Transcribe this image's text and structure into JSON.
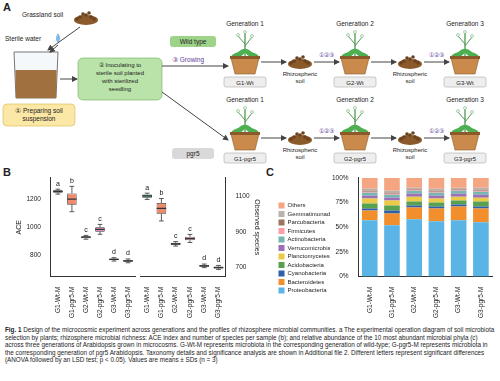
{
  "panel_a": {
    "letter": "A",
    "soil_source": "Grassland soil",
    "water": "Sterile water",
    "step1": "① Preparing soil suspension",
    "step2": "② Inoculating to sterile soil planted with sterilized seedling",
    "step3": "③ Growing",
    "rows": [
      {
        "name": "Wild type",
        "samples": [
          "G1-Wt",
          "G2-Wt",
          "G3-Wt"
        ]
      },
      {
        "name": "pgr5",
        "samples": [
          "G1-pgr5",
          "G2-pgr5",
          "G3-pgr5"
        ]
      }
    ],
    "generations": [
      "Generation 1",
      "Generation 2",
      "Generation 3"
    ],
    "rhizosphere": "Rhizospheric soil",
    "transfer": "①②③"
  },
  "chart_data": [
    {
      "type": "box",
      "panel": "B",
      "categories": [
        "G1-Wt-M",
        "G1-pgr5-M",
        "G2-Wt-M",
        "G2-pgr5-M",
        "G3-Wt-M",
        "G3-pgr5-M"
      ],
      "y_label": "ACE",
      "min": [
        1235,
        1110,
        915,
        950,
        760,
        748
      ],
      "q1": [
        1245,
        1160,
        922,
        968,
        766,
        755
      ],
      "median": [
        1255,
        1200,
        930,
        985,
        772,
        762
      ],
      "q3": [
        1262,
        1240,
        936,
        1000,
        778,
        768
      ],
      "max": [
        1270,
        1290,
        942,
        1020,
        784,
        775
      ],
      "significance": [
        "a",
        "b",
        "c",
        "c",
        "d",
        "d"
      ],
      "colors": [
        "#2aa198",
        "#f08a6c",
        "#8ea3c8",
        "#e68fbf",
        "#e8d27a",
        "#a8d27a"
      ],
      "ylim": [
        650,
        1350
      ],
      "yticks": [
        800,
        1000,
        1200
      ],
      "grid": false
    },
    {
      "type": "box",
      "categories": [
        "G1-Wt-M",
        "G1-pgr5-M",
        "G2-Wt-M",
        "G2-pgr5-M",
        "G3-Wt-M",
        "G3-pgr5-M"
      ],
      "y2_label": "Observed species",
      "min": [
        1080,
        960,
        820,
        840,
        700,
        690
      ],
      "q1": [
        1090,
        1000,
        826,
        852,
        705,
        695
      ],
      "median": [
        1100,
        1030,
        832,
        862,
        710,
        700
      ],
      "q3": [
        1108,
        1060,
        838,
        872,
        715,
        706
      ],
      "max": [
        1115,
        1085,
        845,
        885,
        720,
        712
      ],
      "significance": [
        "a",
        "b",
        "c",
        "c",
        "d",
        "d"
      ],
      "colors": [
        "#2aa198",
        "#f08a6c",
        "#8ea3c8",
        "#e68fbf",
        "#e8d27a",
        "#a8d27a"
      ],
      "y2lim": [
        650,
        1200
      ],
      "y2ticks": [
        700,
        900,
        1100
      ],
      "grid": false
    },
    {
      "type": "bar",
      "panel": "C",
      "stacked": true,
      "legend": "left",
      "grid": false,
      "categories": [
        "G1-Wt-M",
        "G1-pgr5-M",
        "G2-Wt-M",
        "G2-pgr5-M",
        "G3-Wt-M",
        "G3-pgr5-M"
      ],
      "series": [
        {
          "name": "Proteobacteria",
          "color": "#5ab4e5",
          "values": [
            57,
            52,
            58,
            56,
            57,
            55
          ]
        },
        {
          "name": "Bacteroidetes",
          "color": "#f28e2b",
          "values": [
            10,
            12,
            12,
            13,
            14,
            14
          ]
        },
        {
          "name": "Cyanobacteria",
          "color": "#2f5fa8",
          "values": [
            2,
            3,
            2,
            2,
            2,
            2
          ]
        },
        {
          "name": "Acidobacteria",
          "color": "#59a14f",
          "values": [
            5,
            5,
            4,
            4,
            4,
            5
          ]
        },
        {
          "name": "Planctomycetes",
          "color": "#edc948",
          "values": [
            5,
            5,
            5,
            4,
            4,
            4
          ]
        },
        {
          "name": "Verrucomicrobia",
          "color": "#9c6fb6",
          "values": [
            3,
            3,
            3,
            3,
            3,
            3
          ]
        },
        {
          "name": "Actinobacteria",
          "color": "#76b7b2",
          "values": [
            3,
            3,
            3,
            3,
            3,
            3
          ]
        },
        {
          "name": "Firmicutes",
          "color": "#ff9da7",
          "values": [
            1,
            1,
            1,
            1,
            1,
            1
          ]
        },
        {
          "name": "Parcubacteria",
          "color": "#9c755f",
          "values": [
            1,
            1,
            1,
            1,
            1,
            1
          ]
        },
        {
          "name": "Gemmatimonadetes",
          "color": "#bab0ac",
          "values": [
            2,
            2,
            1,
            2,
            1,
            2
          ]
        },
        {
          "name": "Others",
          "color": "#f4a582",
          "values": [
            11,
            13,
            10,
            11,
            10,
            10
          ]
        }
      ],
      "ylim": [
        0,
        100
      ],
      "yticks": [
        {
          "value": 0,
          "label": "0%"
        },
        {
          "value": 25,
          "label": "25%"
        },
        {
          "value": 50,
          "label": "50%"
        },
        {
          "value": 75,
          "label": "75%"
        },
        {
          "value": 100,
          "label": "100%"
        }
      ]
    }
  ],
  "caption": {
    "label": "Fig. 1",
    "text": "Design of the microcosmic experiment across generations and the profiles of rhizosphere microbial communities. a The experimental operation diagram of soil microbiota selection by plants; rhizosphere microbial richness: ACE index and number of species per sample (b); and relative abundance of the 10 most abundant microbial phyla (c) across three generations of Arabidopsis grown in microcosms. G-Wt-M represents microbiota in the corresponding generation of wild-type; G-pgr5-M represents microbiota in the corresponding generation of pgr5 Arabidopsis. Taxonomy details and significance analysis are shown in Additional file 2. Different letters represent significant differences (ANOVA followed by an LSD test; p < 0.05). Values are means ± SDs (n = 3)"
  }
}
